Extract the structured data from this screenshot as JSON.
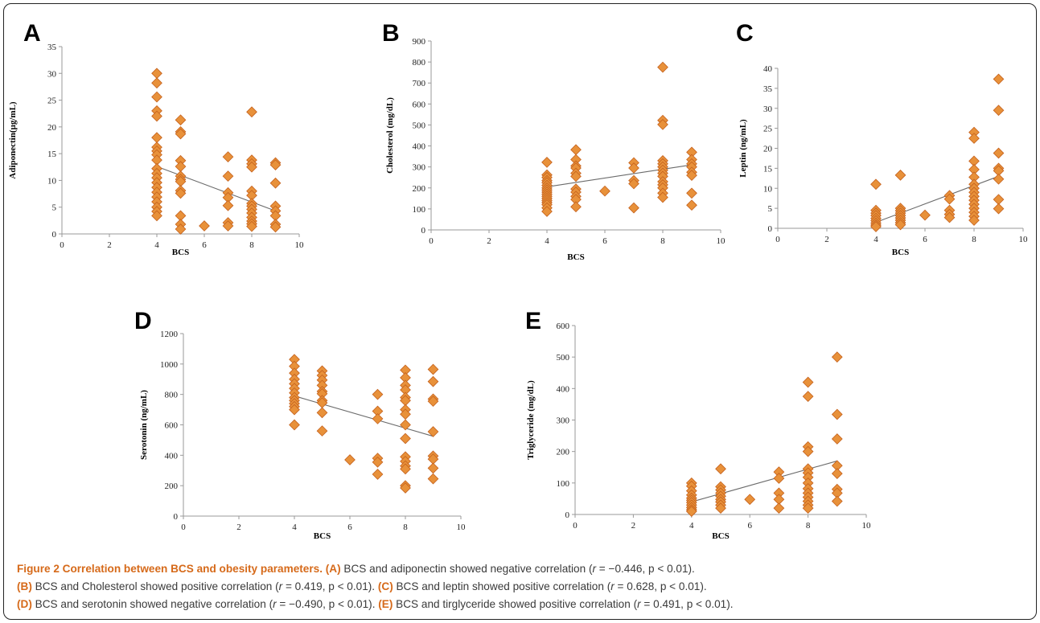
{
  "chart_data": [
    {
      "panel": "A",
      "type": "scatter",
      "xlabel": "BCS",
      "ylabel": "Adiponectin(µg/mL)",
      "xlim": [
        0,
        10
      ],
      "ylim": [
        0,
        35
      ],
      "xticks": [
        0,
        2,
        4,
        6,
        8,
        10
      ],
      "yticks": [
        0,
        5,
        10,
        15,
        20,
        25,
        30,
        35
      ],
      "marker_color": "#e8913a",
      "trendline": {
        "x": [
          4,
          9
        ],
        "y": [
          12.6,
          4.3
        ]
      },
      "points": [
        [
          4,
          30
        ],
        [
          4,
          28.2
        ],
        [
          4,
          25.6
        ],
        [
          4,
          23
        ],
        [
          4,
          22
        ],
        [
          4,
          18
        ],
        [
          4,
          16.2
        ],
        [
          4,
          15.5
        ],
        [
          4,
          14.8
        ],
        [
          4,
          13.8
        ],
        [
          4,
          12.2
        ],
        [
          4,
          11.3
        ],
        [
          4,
          10.5
        ],
        [
          4,
          9.6
        ],
        [
          4,
          8.7
        ],
        [
          4,
          7.8
        ],
        [
          4,
          6.9
        ],
        [
          4,
          6
        ],
        [
          4,
          5
        ],
        [
          4,
          4.2
        ],
        [
          4,
          3.4
        ],
        [
          5,
          21.3
        ],
        [
          5,
          19.1
        ],
        [
          5,
          18.7
        ],
        [
          5,
          13.7
        ],
        [
          5,
          12.6
        ],
        [
          5,
          10.8
        ],
        [
          5,
          10.2
        ],
        [
          5,
          9.8
        ],
        [
          5,
          8.1
        ],
        [
          5,
          7.6
        ],
        [
          5,
          3.4
        ],
        [
          5,
          1.8
        ],
        [
          5,
          0.9
        ],
        [
          6,
          1.5
        ],
        [
          7,
          14.4
        ],
        [
          7,
          10.8
        ],
        [
          7,
          7.7
        ],
        [
          7,
          6.8
        ],
        [
          7,
          5.3
        ],
        [
          7,
          2.1
        ],
        [
          7,
          1.5
        ],
        [
          8,
          22.8
        ],
        [
          8,
          13.8
        ],
        [
          8,
          13.1
        ],
        [
          8,
          12.5
        ],
        [
          8,
          8
        ],
        [
          8,
          7.2
        ],
        [
          8,
          5.7
        ],
        [
          8,
          5.2
        ],
        [
          8,
          4.6
        ],
        [
          8,
          3.9
        ],
        [
          8,
          3.1
        ],
        [
          8,
          2.4
        ],
        [
          8,
          1.9
        ],
        [
          8,
          1.4
        ],
        [
          9,
          13.3
        ],
        [
          9,
          12.9
        ],
        [
          9,
          9.5
        ],
        [
          9,
          5.2
        ],
        [
          9,
          4.3
        ],
        [
          9,
          3.4
        ],
        [
          9,
          1.8
        ],
        [
          9,
          1.3
        ]
      ]
    },
    {
      "panel": "B",
      "type": "scatter",
      "xlabel": "BCS",
      "ylabel": "Cholesterol (mg/dL)",
      "xlim": [
        0,
        10
      ],
      "ylim": [
        0,
        900
      ],
      "xticks": [
        0,
        2,
        4,
        6,
        8,
        10
      ],
      "yticks": [
        0,
        100,
        200,
        300,
        400,
        500,
        600,
        700,
        800,
        900
      ],
      "marker_color": "#e8913a",
      "trendline": {
        "x": [
          4,
          9
        ],
        "y": [
          205,
          310
        ]
      },
      "points": [
        [
          4,
          322
        ],
        [
          4,
          262
        ],
        [
          4,
          250
        ],
        [
          4,
          235
        ],
        [
          4,
          225
        ],
        [
          4,
          212
        ],
        [
          4,
          200
        ],
        [
          4,
          190
        ],
        [
          4,
          180
        ],
        [
          4,
          170
        ],
        [
          4,
          160
        ],
        [
          4,
          150
        ],
        [
          4,
          140
        ],
        [
          4,
          130
        ],
        [
          4,
          120
        ],
        [
          4,
          105
        ],
        [
          4,
          88
        ],
        [
          5,
          382
        ],
        [
          5,
          335
        ],
        [
          5,
          305
        ],
        [
          5,
          295
        ],
        [
          5,
          270
        ],
        [
          5,
          255
        ],
        [
          5,
          195
        ],
        [
          5,
          180
        ],
        [
          5,
          160
        ],
        [
          5,
          145
        ],
        [
          5,
          110
        ],
        [
          6,
          185
        ],
        [
          7,
          320
        ],
        [
          7,
          295
        ],
        [
          7,
          235
        ],
        [
          7,
          220
        ],
        [
          7,
          105
        ],
        [
          8,
          775
        ],
        [
          8,
          522
        ],
        [
          8,
          502
        ],
        [
          8,
          330
        ],
        [
          8,
          315
        ],
        [
          8,
          300
        ],
        [
          8,
          285
        ],
        [
          8,
          270
        ],
        [
          8,
          255
        ],
        [
          8,
          230
        ],
        [
          8,
          215
        ],
        [
          8,
          200
        ],
        [
          8,
          175
        ],
        [
          8,
          155
        ],
        [
          9,
          370
        ],
        [
          9,
          335
        ],
        [
          9,
          315
        ],
        [
          9,
          300
        ],
        [
          9,
          275
        ],
        [
          9,
          260
        ],
        [
          9,
          175
        ],
        [
          9,
          118
        ]
      ]
    },
    {
      "panel": "C",
      "type": "scatter",
      "xlabel": "BCS",
      "ylabel": "Leptin (ng/mL)",
      "xlim": [
        0,
        10
      ],
      "ylim": [
        0,
        40
      ],
      "xticks": [
        0,
        2,
        4,
        6,
        8,
        10
      ],
      "yticks": [
        0,
        5,
        10,
        15,
        20,
        25,
        30,
        35,
        40
      ],
      "marker_color": "#e8913a",
      "trendline": {
        "x": [
          4,
          9
        ],
        "y": [
          1.5,
          13
        ]
      },
      "points": [
        [
          4,
          11
        ],
        [
          4,
          4.5
        ],
        [
          4,
          3.8
        ],
        [
          4,
          3.2
        ],
        [
          4,
          2.5
        ],
        [
          4,
          1.9
        ],
        [
          4,
          1.3
        ],
        [
          4,
          0.8
        ],
        [
          4,
          0.4
        ],
        [
          5,
          13.3
        ],
        [
          5,
          5
        ],
        [
          5,
          4.4
        ],
        [
          5,
          3.8
        ],
        [
          5,
          3.2
        ],
        [
          5,
          2.6
        ],
        [
          5,
          2
        ],
        [
          5,
          1.4
        ],
        [
          5,
          0.9
        ],
        [
          6,
          3.3
        ],
        [
          7,
          8.2
        ],
        [
          7,
          7.3
        ],
        [
          7,
          4.5
        ],
        [
          7,
          3.5
        ],
        [
          7,
          2.7
        ],
        [
          8,
          24
        ],
        [
          8,
          22.5
        ],
        [
          8,
          16.8
        ],
        [
          8,
          14.7
        ],
        [
          8,
          12.8
        ],
        [
          8,
          11
        ],
        [
          8,
          10
        ],
        [
          8,
          9
        ],
        [
          8,
          8
        ],
        [
          8,
          7
        ],
        [
          8,
          6
        ],
        [
          8,
          5
        ],
        [
          8,
          4
        ],
        [
          8,
          3
        ],
        [
          8,
          2
        ],
        [
          9,
          37.3
        ],
        [
          9,
          29.5
        ],
        [
          9,
          18.8
        ],
        [
          9,
          15
        ],
        [
          9,
          14.4
        ],
        [
          9,
          12.3
        ],
        [
          9,
          7.2
        ],
        [
          9,
          4.9
        ]
      ]
    },
    {
      "panel": "D",
      "type": "scatter",
      "xlabel": "BCS",
      "ylabel": "Serotonin (ng/mL)",
      "xlim": [
        0,
        10
      ],
      "ylim": [
        0,
        1200
      ],
      "xticks": [
        0,
        2,
        4,
        6,
        8,
        10
      ],
      "yticks": [
        0,
        200,
        400,
        600,
        800,
        1000,
        1200
      ],
      "marker_color": "#e8913a",
      "trendline": {
        "x": [
          4,
          9
        ],
        "y": [
          790,
          525
        ]
      },
      "points": [
        [
          4,
          1030
        ],
        [
          4,
          985
        ],
        [
          4,
          940
        ],
        [
          4,
          900
        ],
        [
          4,
          870
        ],
        [
          4,
          840
        ],
        [
          4,
          810
        ],
        [
          4,
          780
        ],
        [
          4,
          760
        ],
        [
          4,
          740
        ],
        [
          4,
          720
        ],
        [
          4,
          700
        ],
        [
          4,
          600
        ],
        [
          5,
          955
        ],
        [
          5,
          925
        ],
        [
          5,
          895
        ],
        [
          5,
          860
        ],
        [
          5,
          820
        ],
        [
          5,
          805
        ],
        [
          5,
          760
        ],
        [
          5,
          745
        ],
        [
          5,
          680
        ],
        [
          5,
          560
        ],
        [
          6,
          370
        ],
        [
          7,
          800
        ],
        [
          7,
          690
        ],
        [
          7,
          640
        ],
        [
          7,
          380
        ],
        [
          7,
          355
        ],
        [
          7,
          275
        ],
        [
          8,
          960
        ],
        [
          8,
          910
        ],
        [
          8,
          860
        ],
        [
          8,
          830
        ],
        [
          8,
          780
        ],
        [
          8,
          760
        ],
        [
          8,
          700
        ],
        [
          8,
          670
        ],
        [
          8,
          600
        ],
        [
          8,
          510
        ],
        [
          8,
          390
        ],
        [
          8,
          360
        ],
        [
          8,
          330
        ],
        [
          8,
          310
        ],
        [
          8,
          200
        ],
        [
          8,
          185
        ],
        [
          9,
          965
        ],
        [
          9,
          885
        ],
        [
          9,
          770
        ],
        [
          9,
          755
        ],
        [
          9,
          555
        ],
        [
          9,
          395
        ],
        [
          9,
          375
        ],
        [
          9,
          315
        ],
        [
          9,
          245
        ]
      ]
    },
    {
      "panel": "E",
      "type": "scatter",
      "xlabel": "BCS",
      "ylabel": "Triglyceride (mg/dL)",
      "xlim": [
        0,
        10
      ],
      "ylim": [
        0,
        600
      ],
      "xticks": [
        0,
        2,
        4,
        6,
        8,
        10
      ],
      "yticks": [
        0,
        100,
        200,
        300,
        400,
        500,
        600
      ],
      "marker_color": "#e8913a",
      "trendline": {
        "x": [
          4,
          9
        ],
        "y": [
          40,
          170
        ]
      },
      "points": [
        [
          4,
          100
        ],
        [
          4,
          90
        ],
        [
          4,
          75
        ],
        [
          4,
          62
        ],
        [
          4,
          52
        ],
        [
          4,
          45
        ],
        [
          4,
          38
        ],
        [
          4,
          30
        ],
        [
          4,
          22
        ],
        [
          4,
          15
        ],
        [
          4,
          10
        ],
        [
          5,
          145
        ],
        [
          5,
          88
        ],
        [
          5,
          78
        ],
        [
          5,
          68
        ],
        [
          5,
          58
        ],
        [
          5,
          48
        ],
        [
          5,
          40
        ],
        [
          5,
          30
        ],
        [
          5,
          20
        ],
        [
          6,
          48
        ],
        [
          7,
          135
        ],
        [
          7,
          115
        ],
        [
          7,
          68
        ],
        [
          7,
          48
        ],
        [
          7,
          20
        ],
        [
          8,
          420
        ],
        [
          8,
          375
        ],
        [
          8,
          215
        ],
        [
          8,
          200
        ],
        [
          8,
          145
        ],
        [
          8,
          132
        ],
        [
          8,
          118
        ],
        [
          8,
          100
        ],
        [
          8,
          82
        ],
        [
          8,
          68
        ],
        [
          8,
          55
        ],
        [
          8,
          42
        ],
        [
          8,
          30
        ],
        [
          8,
          20
        ],
        [
          9,
          500
        ],
        [
          9,
          318
        ],
        [
          9,
          240
        ],
        [
          9,
          155
        ],
        [
          9,
          130
        ],
        [
          9,
          80
        ],
        [
          9,
          68
        ],
        [
          9,
          42
        ]
      ]
    }
  ],
  "caption": {
    "title": "Figure 2 Correlation between BCS and obesity parameters.",
    "lines": [
      {
        "key": "(A)",
        "text1": " BCS and adiponectin showed negative correlation (",
        "r": "r",
        "text2": " = −0.446, p < 0.01)."
      },
      {
        "key": "(B)",
        "text1": " BCS and Cholesterol showed positive correlation (",
        "r": "r",
        "text2": " = 0.419, p < 0.01). "
      },
      {
        "key": "(D)",
        "text1": " BCS and serotonin showed negative correlation (",
        "r": "r",
        "text2": " = −0.490, p < 0.01). "
      }
    ],
    "inline_parts": [
      {
        "key": "(C)",
        "text1": " BCS and leptin showed positive correlation (",
        "r": "r",
        "text2": " = 0.628, p < 0.01)."
      },
      {
        "key": "(E)",
        "text1": " BCS and tirglyceride showed positive correlation (",
        "r": "r",
        "text2": " = 0.491, p < 0.01)."
      }
    ]
  }
}
